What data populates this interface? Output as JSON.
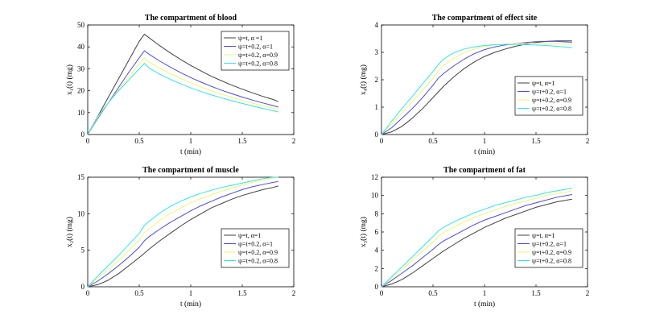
{
  "colors": {
    "black": "#404040",
    "blue": "#4b4bdc",
    "yellow": "#f3f37a",
    "cyan": "#35e3e3"
  },
  "chart_data": [
    {
      "id": "blood",
      "type": "line",
      "title": "The compartment of blood",
      "xlabel": "t (min)",
      "ylabel": "x₁(t) (mg)",
      "xlim": [
        0,
        2
      ],
      "ylim": [
        0,
        50
      ],
      "xticks": [
        0,
        0.5,
        1,
        1.5,
        2
      ],
      "yticks": [
        0,
        10,
        20,
        30,
        40,
        50
      ],
      "legend_position": "top-right",
      "series": [
        {
          "name": "ψ=t, α =1",
          "color": "#404040",
          "x": [
            0,
            0.1,
            0.2,
            0.3,
            0.4,
            0.5,
            0.55,
            0.6,
            0.7,
            0.8,
            0.9,
            1.0,
            1.1,
            1.2,
            1.3,
            1.4,
            1.5,
            1.6,
            1.7,
            1.8,
            1.85
          ],
          "y": [
            0,
            8.5,
            17,
            25.5,
            34,
            42.5,
            45.8,
            44,
            40.5,
            37.3,
            34.3,
            31.5,
            29,
            26.6,
            24.5,
            22.5,
            20.7,
            19,
            17.4,
            16,
            15
          ]
        },
        {
          "name": "ψ=t+0.2, α=1",
          "color": "#4b4bdc",
          "x": [
            0,
            0.1,
            0.2,
            0.3,
            0.4,
            0.5,
            0.55,
            0.6,
            0.7,
            0.8,
            0.9,
            1.0,
            1.1,
            1.2,
            1.3,
            1.4,
            1.5,
            1.6,
            1.7,
            1.8,
            1.85
          ],
          "y": [
            0,
            7.5,
            14.5,
            21.5,
            28.5,
            35,
            38.2,
            36.5,
            33.5,
            30.8,
            28.3,
            26,
            23.9,
            22,
            20.2,
            18.6,
            17.1,
            15.7,
            14.4,
            13.2,
            12.5
          ]
        },
        {
          "name": "ψ=t+0.2, α=0.9",
          "color": "#f3f37a",
          "x": [
            0,
            0.1,
            0.2,
            0.3,
            0.4,
            0.5,
            0.55,
            0.6,
            0.7,
            0.8,
            0.9,
            1.0,
            1.1,
            1.2,
            1.3,
            1.4,
            1.5,
            1.6,
            1.7,
            1.8,
            1.85
          ],
          "y": [
            0,
            8,
            14.5,
            20.5,
            26.5,
            32.2,
            35,
            33,
            30.2,
            27.8,
            25.6,
            23.6,
            21.7,
            20,
            18.4,
            17,
            15.6,
            14.3,
            13.2,
            12.1,
            11.4
          ]
        },
        {
          "name": "ψ=t+0.2, α=0.8",
          "color": "#35e3e3",
          "x": [
            0,
            0.1,
            0.2,
            0.3,
            0.4,
            0.5,
            0.55,
            0.6,
            0.7,
            0.8,
            0.9,
            1.0,
            1.1,
            1.2,
            1.3,
            1.4,
            1.5,
            1.6,
            1.7,
            1.8,
            1.85
          ],
          "y": [
            0,
            8.5,
            14.5,
            20,
            25,
            30,
            32.5,
            30.2,
            27.5,
            25.2,
            23.2,
            21.3,
            19.6,
            18.1,
            16.7,
            15.4,
            14.2,
            13,
            11.9,
            10.9,
            10.3
          ]
        }
      ]
    },
    {
      "id": "effect",
      "type": "line",
      "title": "The compartment of effect site",
      "xlabel": "t (min)",
      "ylabel": "x₄(t) (mg)",
      "xlim": [
        0,
        2
      ],
      "ylim": [
        0,
        4
      ],
      "xticks": [
        0,
        0.5,
        1,
        1.5,
        2
      ],
      "yticks": [
        0,
        1,
        2,
        3,
        4
      ],
      "legend_position": "bottom-right",
      "series": [
        {
          "name": "ψ=t, α=1",
          "color": "#404040",
          "x": [
            0,
            0.1,
            0.2,
            0.3,
            0.4,
            0.5,
            0.6,
            0.7,
            0.8,
            0.9,
            1.0,
            1.1,
            1.2,
            1.3,
            1.4,
            1.5,
            1.6,
            1.7,
            1.8,
            1.85
          ],
          "y": [
            0,
            0.1,
            0.3,
            0.6,
            0.95,
            1.35,
            1.75,
            2.1,
            2.4,
            2.65,
            2.85,
            3.0,
            3.12,
            3.22,
            3.3,
            3.36,
            3.4,
            3.42,
            3.42,
            3.42
          ]
        },
        {
          "name": "ψ=t+0.2, α=1",
          "color": "#4b4bdc",
          "x": [
            0,
            0.1,
            0.2,
            0.3,
            0.4,
            0.5,
            0.55,
            0.6,
            0.7,
            0.8,
            0.9,
            1.0,
            1.1,
            1.2,
            1.3,
            1.4,
            1.5,
            1.6,
            1.7,
            1.8,
            1.85
          ],
          "y": [
            0,
            0.25,
            0.6,
            0.95,
            1.35,
            1.8,
            2.05,
            2.22,
            2.5,
            2.75,
            2.95,
            3.1,
            3.2,
            3.27,
            3.32,
            3.36,
            3.39,
            3.4,
            3.4,
            3.38,
            3.37
          ]
        },
        {
          "name": "ψ=t+0.2, α=0.9",
          "color": "#f3f37a",
          "x": [
            0,
            0.1,
            0.2,
            0.3,
            0.4,
            0.5,
            0.55,
            0.6,
            0.7,
            0.8,
            0.9,
            1.0,
            1.1,
            1.2,
            1.3,
            1.4,
            1.5,
            1.6,
            1.7,
            1.8,
            1.85
          ],
          "y": [
            0,
            0.4,
            0.8,
            1.2,
            1.62,
            2.05,
            2.3,
            2.52,
            2.78,
            2.98,
            3.12,
            3.21,
            3.27,
            3.3,
            3.32,
            3.33,
            3.33,
            3.32,
            3.31,
            3.3,
            3.29
          ]
        },
        {
          "name": "ψ=t+0.2, α=0.8",
          "color": "#35e3e3",
          "x": [
            0,
            0.1,
            0.2,
            0.3,
            0.4,
            0.5,
            0.55,
            0.6,
            0.7,
            0.8,
            0.9,
            1.0,
            1.1,
            1.2,
            1.3,
            1.4,
            1.5,
            1.6,
            1.7,
            1.8,
            1.85
          ],
          "y": [
            0,
            0.5,
            0.95,
            1.4,
            1.85,
            2.3,
            2.55,
            2.75,
            2.98,
            3.12,
            3.2,
            3.25,
            3.28,
            3.29,
            3.29,
            3.28,
            3.27,
            3.25,
            3.22,
            3.19,
            3.17
          ]
        }
      ]
    },
    {
      "id": "muscle",
      "type": "line",
      "title": "The compartment of muscle",
      "xlabel": "t (min)",
      "ylabel": "x₂(t) (mg)",
      "xlim": [
        0,
        2
      ],
      "ylim": [
        0,
        15
      ],
      "xticks": [
        0,
        0.5,
        1,
        1.5,
        2
      ],
      "yticks": [
        0,
        5,
        10,
        15
      ],
      "legend_position": "bottom-right",
      "series": [
        {
          "name": "ψ=t, α=1",
          "color": "#404040",
          "x": [
            0,
            0.1,
            0.2,
            0.3,
            0.4,
            0.5,
            0.6,
            0.7,
            0.8,
            0.9,
            1.0,
            1.1,
            1.2,
            1.3,
            1.4,
            1.5,
            1.6,
            1.7,
            1.8,
            1.85
          ],
          "y": [
            0,
            0.3,
            0.9,
            1.8,
            2.9,
            4.0,
            5.2,
            6.3,
            7.3,
            8.3,
            9.2,
            10.0,
            10.8,
            11.4,
            12.0,
            12.5,
            12.9,
            13.3,
            13.6,
            13.8
          ]
        },
        {
          "name": "ψ=t+0.2, α=1",
          "color": "#4b4bdc",
          "x": [
            0,
            0.1,
            0.2,
            0.3,
            0.4,
            0.5,
            0.55,
            0.6,
            0.7,
            0.8,
            0.9,
            1.0,
            1.1,
            1.2,
            1.3,
            1.4,
            1.5,
            1.6,
            1.7,
            1.8,
            1.85
          ],
          "y": [
            0,
            0.8,
            1.8,
            2.9,
            4.1,
            5.4,
            6.3,
            6.9,
            7.9,
            8.8,
            9.6,
            10.4,
            11.1,
            11.7,
            12.3,
            12.8,
            13.3,
            13.7,
            14.0,
            14.3,
            14.4
          ]
        },
        {
          "name": "ψ=t+0.2, α=0.9",
          "color": "#f3f37a",
          "x": [
            0,
            0.1,
            0.2,
            0.3,
            0.4,
            0.5,
            0.55,
            0.6,
            0.7,
            0.8,
            0.9,
            1.0,
            1.1,
            1.2,
            1.3,
            1.4,
            1.5,
            1.6,
            1.7,
            1.8,
            1.85
          ],
          "y": [
            0,
            1.2,
            2.4,
            3.6,
            5.0,
            6.4,
            7.4,
            8.0,
            9.1,
            10.0,
            10.8,
            11.5,
            12.1,
            12.6,
            13.1,
            13.5,
            13.9,
            14.3,
            14.6,
            14.9,
            15.0
          ]
        },
        {
          "name": "ψ=t+0.2, α=0.8",
          "color": "#35e3e3",
          "x": [
            0,
            0.1,
            0.2,
            0.3,
            0.4,
            0.5,
            0.55,
            0.6,
            0.7,
            0.8,
            0.9,
            1.0,
            1.1,
            1.2,
            1.3,
            1.4,
            1.5,
            1.6,
            1.7,
            1.8,
            1.85
          ],
          "y": [
            0,
            1.5,
            2.9,
            4.3,
            5.8,
            7.3,
            8.4,
            9.0,
            10.1,
            11.0,
            11.7,
            12.3,
            12.8,
            13.2,
            13.6,
            13.9,
            14.2,
            14.5,
            14.8,
            15.0,
            15.0
          ]
        }
      ]
    },
    {
      "id": "fat",
      "type": "line",
      "title": "The compartment of fat",
      "xlabel": "t (min)",
      "ylabel": "x₃(t) (mg)",
      "xlim": [
        0,
        2
      ],
      "ylim": [
        0,
        12
      ],
      "xticks": [
        0,
        0.5,
        1,
        1.5,
        2
      ],
      "yticks": [
        0,
        2,
        4,
        6,
        8,
        10,
        12
      ],
      "legend_position": "bottom-right",
      "series": [
        {
          "name": "ψ=t, α=1",
          "color": "#404040",
          "x": [
            0,
            0.1,
            0.2,
            0.3,
            0.4,
            0.5,
            0.6,
            0.7,
            0.8,
            0.9,
            1.0,
            1.1,
            1.2,
            1.3,
            1.4,
            1.5,
            1.6,
            1.7,
            1.8,
            1.85
          ],
          "y": [
            0,
            0.3,
            0.8,
            1.5,
            2.3,
            3.1,
            3.9,
            4.6,
            5.3,
            5.9,
            6.5,
            7.0,
            7.5,
            7.9,
            8.3,
            8.7,
            9.0,
            9.3,
            9.5,
            9.6
          ]
        },
        {
          "name": "ψ=t+0.2, α=1",
          "color": "#4b4bdc",
          "x": [
            0,
            0.1,
            0.2,
            0.3,
            0.4,
            0.5,
            0.55,
            0.6,
            0.7,
            0.8,
            0.9,
            1.0,
            1.1,
            1.2,
            1.3,
            1.4,
            1.5,
            1.6,
            1.7,
            1.8,
            1.85
          ],
          "y": [
            0,
            0.7,
            1.5,
            2.3,
            3.2,
            4.1,
            4.6,
            5.0,
            5.6,
            6.2,
            6.8,
            7.3,
            7.7,
            8.1,
            8.5,
            8.9,
            9.2,
            9.5,
            9.8,
            10.0,
            10.1
          ]
        },
        {
          "name": "ψ=t+0.2, α=0.9",
          "color": "#f3f37a",
          "x": [
            0,
            0.1,
            0.2,
            0.3,
            0.4,
            0.5,
            0.55,
            0.6,
            0.7,
            0.8,
            0.9,
            1.0,
            1.1,
            1.2,
            1.3,
            1.4,
            1.5,
            1.6,
            1.7,
            1.8,
            1.85
          ],
          "y": [
            0,
            0.9,
            1.9,
            2.9,
            3.9,
            4.9,
            5.5,
            5.9,
            6.5,
            7.1,
            7.6,
            8.0,
            8.4,
            8.8,
            9.1,
            9.4,
            9.7,
            10.0,
            10.2,
            10.4,
            10.5
          ]
        },
        {
          "name": "ψ=t+0.2, α=0.8",
          "color": "#35e3e3",
          "x": [
            0,
            0.1,
            0.2,
            0.3,
            0.4,
            0.5,
            0.55,
            0.6,
            0.7,
            0.8,
            0.9,
            1.0,
            1.1,
            1.2,
            1.3,
            1.4,
            1.5,
            1.6,
            1.7,
            1.8,
            1.85
          ],
          "y": [
            0,
            1.1,
            2.2,
            3.3,
            4.4,
            5.5,
            6.1,
            6.5,
            7.1,
            7.6,
            8.1,
            8.5,
            8.9,
            9.2,
            9.5,
            9.8,
            10.0,
            10.3,
            10.5,
            10.7,
            10.8
          ]
        }
      ]
    }
  ]
}
